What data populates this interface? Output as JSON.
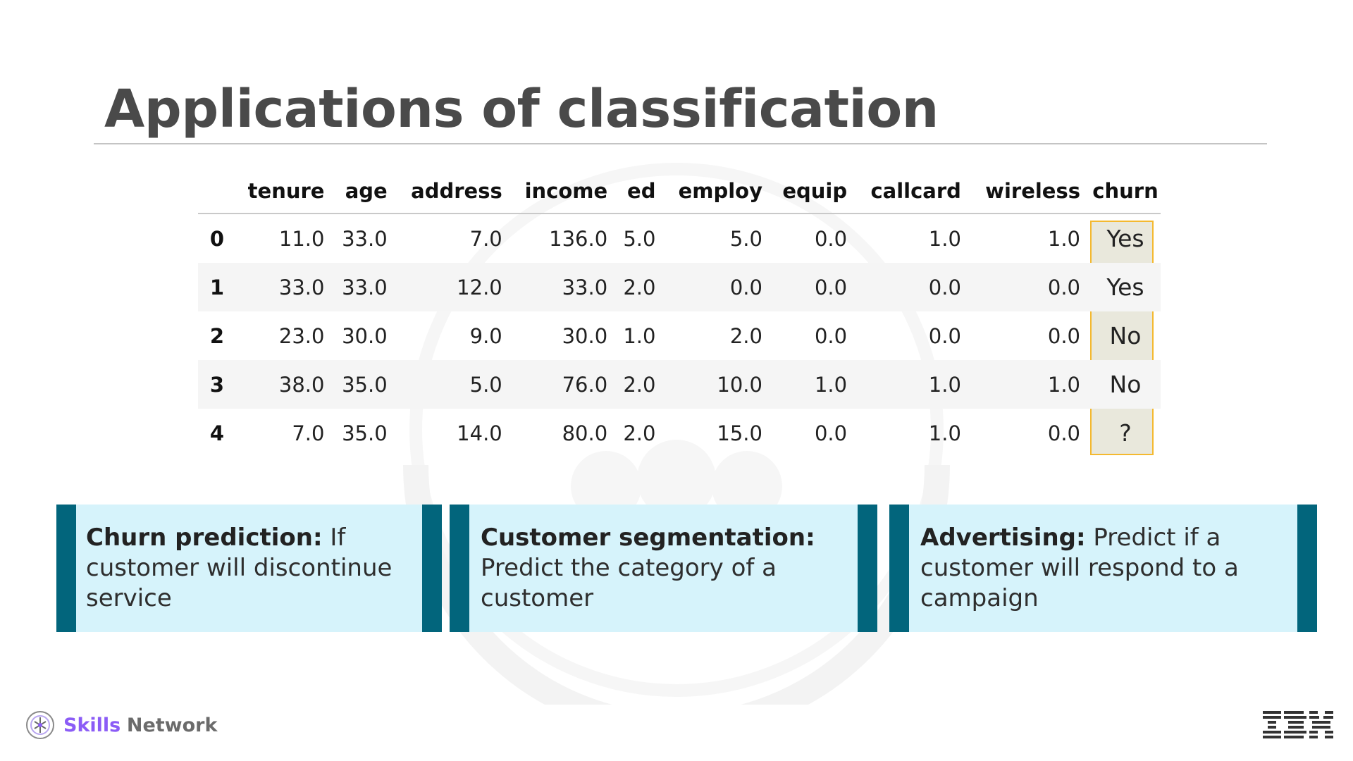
{
  "slide": {
    "title": "Applications of classification"
  },
  "table": {
    "columns": [
      "",
      "tenure",
      "age",
      "address",
      "income",
      "ed",
      "employ",
      "equip",
      "callcard",
      "wireless",
      "churn"
    ],
    "rows": [
      [
        "0",
        "11.0",
        "33.0",
        "7.0",
        "136.0",
        "5.0",
        "5.0",
        "0.0",
        "1.0",
        "1.0",
        "Yes"
      ],
      [
        "1",
        "33.0",
        "33.0",
        "12.0",
        "33.0",
        "2.0",
        "0.0",
        "0.0",
        "0.0",
        "0.0",
        "Yes"
      ],
      [
        "2",
        "23.0",
        "30.0",
        "9.0",
        "30.0",
        "1.0",
        "2.0",
        "0.0",
        "0.0",
        "0.0",
        "No"
      ],
      [
        "3",
        "38.0",
        "35.0",
        "5.0",
        "76.0",
        "2.0",
        "10.0",
        "1.0",
        "1.0",
        "1.0",
        "No"
      ],
      [
        "4",
        "7.0",
        "35.0",
        "14.0",
        "80.0",
        "2.0",
        "15.0",
        "0.0",
        "1.0",
        "0.0",
        "?"
      ]
    ],
    "highlight_color": "#f4b930"
  },
  "cards": [
    {
      "heading": "Churn prediction",
      "text": "If customer will discontinue service"
    },
    {
      "heading": "Customer segmentation",
      "text": "Predict the category of a customer"
    },
    {
      "heading": "Advertising",
      "text": "Predict if a customer will respond to a campaign"
    }
  ],
  "footer": {
    "brand_skills": "Skills",
    "brand_network": "Network",
    "logo_icon": "skills-network-logo-icon",
    "company_logo": "ibm-logo"
  },
  "colors": {
    "card_bg": "#d6f3fb",
    "card_border": "#02657c",
    "brand_purple": "#8b5cf6"
  }
}
